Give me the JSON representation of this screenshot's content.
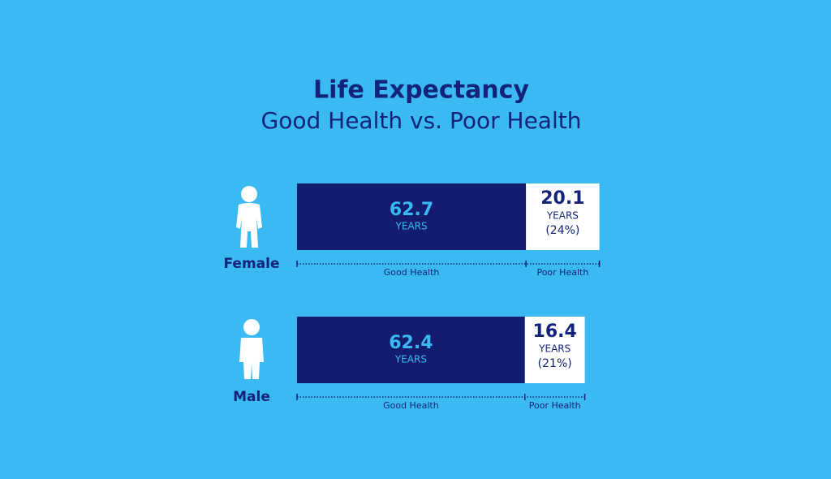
{
  "chart_data": {
    "type": "bar",
    "orientation": "horizontal",
    "stacked": true,
    "title": "Life Expectancy",
    "subtitle": "Good Health vs. Poor Health",
    "categories": [
      "Female",
      "Male"
    ],
    "unit": "YEARS",
    "series": [
      {
        "name": "Good Health",
        "color": "#131c6e",
        "values": [
          62.7,
          62.4
        ]
      },
      {
        "name": "Poor Health",
        "color": "#ffffff",
        "values": [
          20.1,
          16.4
        ],
        "share_values": [
          24,
          21
        ],
        "share_labels": [
          "(24%)",
          "(21%)"
        ]
      }
    ]
  }
}
